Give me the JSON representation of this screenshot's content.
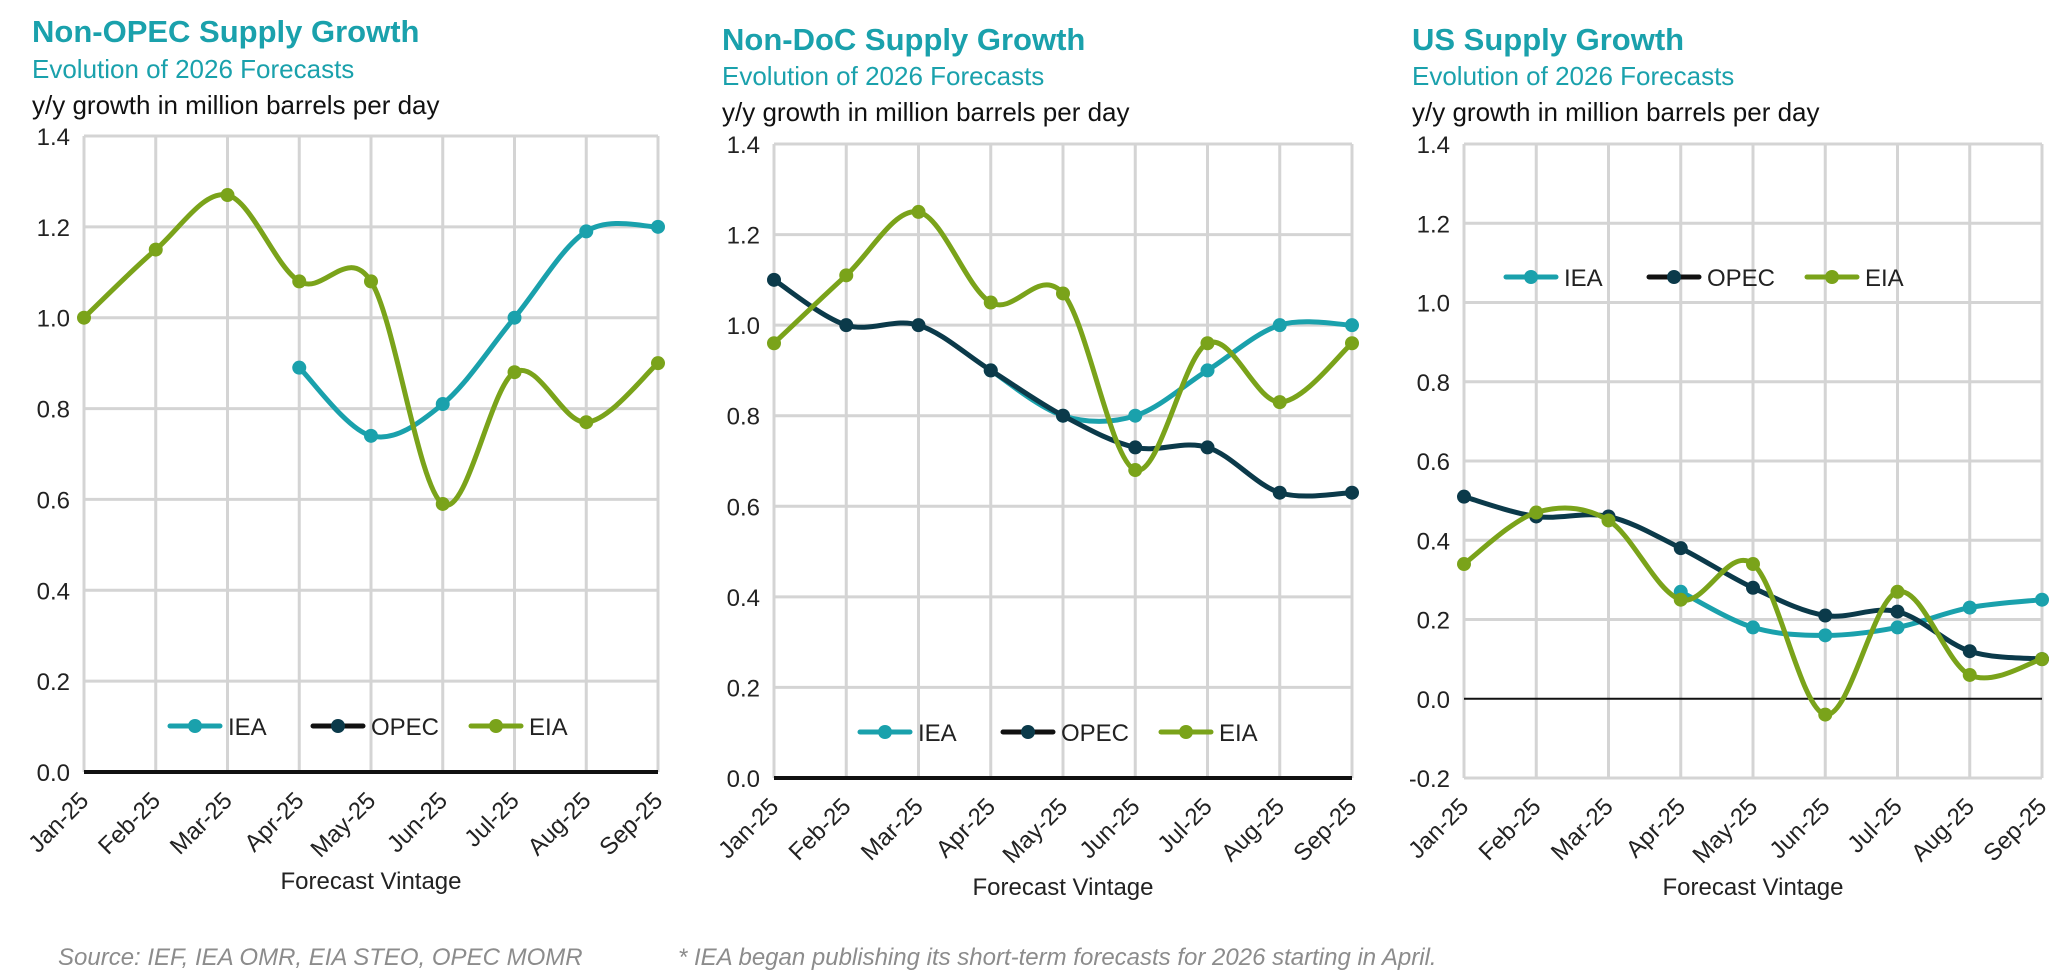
{
  "colors": {
    "iea": "#1aa1ac",
    "opec": "#0b3a4a",
    "eia": "#7aa31a",
    "title": "#1aa1ac",
    "grid": "#d4d4d4",
    "footnote": "#8c8c8c"
  },
  "footer": {
    "source": "Source: IEF, IEA OMR, EIA STEO, OPEC MOMR",
    "note": "* IEA began publishing its short-term forecasts for 2026 starting in April."
  },
  "chart_data": [
    {
      "type": "line",
      "title": "Non-OPEC Supply Growth",
      "subtitle": "Evolution of 2026 Forecasts",
      "units": "y/y growth in million barrels per day",
      "xlabel": "Forecast Vintage",
      "categories": [
        "Jan-25",
        "Feb-25",
        "Mar-25",
        "Apr-25",
        "May-25",
        "Jun-25",
        "Jul-25",
        "Aug-25",
        "Sep-25"
      ],
      "ylim": [
        0,
        1.4
      ],
      "yticks": [
        "0.0",
        "0.2",
        "0.4",
        "0.6",
        "0.8",
        "1.0",
        "1.2",
        "1.4"
      ],
      "legend": "bottom-center",
      "series": [
        {
          "name": "IEA",
          "key": "iea",
          "values": [
            null,
            null,
            null,
            0.89,
            0.74,
            0.81,
            1.0,
            1.19,
            1.2
          ]
        },
        {
          "name": "OPEC",
          "key": "opec",
          "values": [
            null,
            null,
            null,
            null,
            null,
            null,
            null,
            null,
            null
          ]
        },
        {
          "name": "EIA",
          "key": "eia",
          "values": [
            1.0,
            1.15,
            1.27,
            1.08,
            1.08,
            0.59,
            0.88,
            0.77,
            0.9
          ]
        }
      ]
    },
    {
      "type": "line",
      "title": "Non-DoC Supply Growth",
      "subtitle": "Evolution of 2026 Forecasts",
      "units": "y/y growth in million barrels per day",
      "xlabel": "Forecast Vintage",
      "categories": [
        "Jan-25",
        "Feb-25",
        "Mar-25",
        "Apr-25",
        "May-25",
        "Jun-25",
        "Jul-25",
        "Aug-25",
        "Sep-25"
      ],
      "ylim": [
        0,
        1.4
      ],
      "yticks": [
        "0.0",
        "0.2",
        "0.4",
        "0.6",
        "0.8",
        "1.0",
        "1.2",
        "1.4"
      ],
      "legend": "bottom-center",
      "series": [
        {
          "name": "IEA",
          "key": "iea",
          "values": [
            null,
            null,
            null,
            0.9,
            0.8,
            0.8,
            0.9,
            1.0,
            1.0
          ]
        },
        {
          "name": "OPEC",
          "key": "opec",
          "values": [
            1.1,
            1.0,
            1.0,
            0.9,
            0.8,
            0.73,
            0.73,
            0.63,
            0.63
          ]
        },
        {
          "name": "EIA",
          "key": "eia",
          "values": [
            0.96,
            1.11,
            1.25,
            1.05,
            1.07,
            0.68,
            0.96,
            0.83,
            0.96
          ]
        }
      ]
    },
    {
      "type": "line",
      "title": "US Supply Growth",
      "subtitle": "Evolution of 2026 Forecasts",
      "units": "y/y growth in million barrels per day",
      "xlabel": "Forecast Vintage",
      "categories": [
        "Jan-25",
        "Feb-25",
        "Mar-25",
        "Apr-25",
        "May-25",
        "Jun-25",
        "Jul-25",
        "Aug-25",
        "Sep-25"
      ],
      "ylim": [
        -0.2,
        1.4
      ],
      "yticks": [
        "-0.2",
        "0.0",
        "0.2",
        "0.4",
        "0.6",
        "0.8",
        "1.0",
        "1.2",
        "1.4"
      ],
      "legend": "top-left",
      "series": [
        {
          "name": "IEA",
          "key": "iea",
          "values": [
            null,
            null,
            null,
            0.27,
            0.18,
            0.16,
            0.18,
            0.23,
            0.25
          ]
        },
        {
          "name": "OPEC",
          "key": "opec",
          "values": [
            0.51,
            0.46,
            0.46,
            0.38,
            0.28,
            0.21,
            0.22,
            0.12,
            0.1
          ]
        },
        {
          "name": "EIA",
          "key": "eia",
          "values": [
            0.34,
            0.47,
            0.45,
            0.25,
            0.34,
            -0.04,
            0.27,
            0.06,
            0.1
          ]
        }
      ]
    }
  ]
}
